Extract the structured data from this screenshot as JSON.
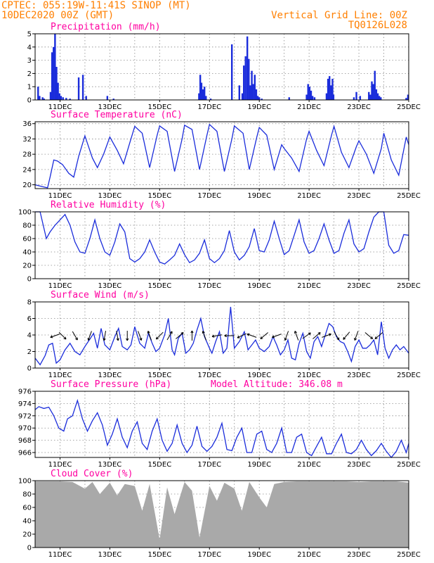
{
  "header": {
    "line1": "CPTEC:   055:19W-11:41S  SINOP (MT)",
    "line2": "10DEC2020 00Z (GMT)",
    "right1": "Vertical Grid Line: 00Z",
    "right2": "TQ0126L028"
  },
  "colors": {
    "header": "#ff7f00",
    "title": "#ff00a0",
    "line": "#1a2cdb",
    "cloud": "#a9a9a9",
    "frame": "#000000",
    "grid": "#8a8a8a"
  },
  "x_axis": {
    "start": "10DEC2020 00Z",
    "days": 15,
    "tick_labels": [
      "11DEC",
      "13DEC",
      "15DEC",
      "17DEC",
      "19DEC",
      "21DEC",
      "23DEC",
      "25DEC"
    ],
    "tick_day_offsets": [
      1,
      3,
      5,
      7,
      9,
      11,
      13,
      15
    ]
  },
  "chart_data": [
    {
      "type": "bar",
      "title": "Precipitation (mm/h)",
      "ylim": [
        0,
        5
      ],
      "yticks": [
        0,
        1,
        2,
        3,
        4,
        5
      ],
      "x": [
        0.12,
        0.18,
        0.3,
        0.36,
        0.62,
        0.68,
        0.74,
        0.8,
        0.86,
        0.92,
        0.98,
        1.04,
        1.12,
        1.25,
        1.4,
        1.75,
        1.92,
        2.05,
        2.9,
        3.15,
        6.58,
        6.63,
        6.68,
        6.74,
        6.8,
        6.86,
        7.05,
        7.9,
        8.2,
        8.32,
        8.38,
        8.45,
        8.52,
        8.58,
        8.64,
        8.7,
        8.76,
        8.82,
        8.88,
        8.94,
        9.0,
        9.1,
        10.2,
        10.9,
        10.96,
        11.02,
        11.08,
        11.14,
        11.22,
        11.7,
        11.76,
        11.82,
        11.88,
        11.94,
        11.98,
        12.8,
        12.9,
        13.05,
        13.4,
        13.46,
        13.52,
        13.58,
        13.64,
        13.7,
        13.76,
        13.82,
        13.88,
        14.9,
        14.97
      ],
      "values": [
        1.0,
        0.3,
        0.2,
        0.1,
        0.6,
        3.6,
        4.0,
        5.0,
        2.5,
        1.3,
        0.5,
        0.3,
        0.2,
        0.15,
        0.1,
        1.7,
        1.9,
        0.3,
        0.3,
        0.1,
        0.5,
        1.9,
        1.3,
        0.8,
        1.0,
        0.3,
        0.1,
        4.2,
        1.1,
        0.5,
        2.6,
        3.3,
        4.8,
        3.1,
        1.1,
        2.2,
        1.2,
        1.9,
        0.8,
        0.3,
        0.2,
        0.1,
        0.2,
        0.4,
        1.2,
        1.0,
        0.7,
        0.3,
        0.2,
        0.5,
        1.6,
        1.8,
        1.1,
        1.6,
        0.4,
        0.2,
        0.6,
        0.3,
        0.6,
        0.4,
        1.4,
        1.2,
        2.2,
        0.8,
        0.5,
        0.3,
        0.2,
        0.15,
        0.4
      ]
    },
    {
      "type": "line",
      "title": "Surface Temperature (nC)",
      "ylim": [
        19,
        36.5
      ],
      "yticks": [
        20,
        24,
        28,
        32,
        36
      ],
      "x": [
        0,
        0.3,
        0.5,
        0.6,
        0.75,
        0.9,
        1.1,
        1.35,
        1.55,
        1.75,
        2.0,
        2.3,
        2.5,
        2.75,
        3.0,
        3.3,
        3.55,
        3.8,
        4.0,
        4.3,
        4.6,
        4.9,
        5.0,
        5.3,
        5.6,
        5.9,
        6.0,
        6.3,
        6.6,
        6.9,
        7.0,
        7.3,
        7.6,
        7.9,
        8.0,
        8.35,
        8.6,
        8.9,
        9.0,
        9.3,
        9.6,
        9.9,
        10.0,
        10.3,
        10.6,
        10.9,
        11.0,
        11.3,
        11.6,
        11.9,
        12.0,
        12.3,
        12.6,
        12.9,
        13.0,
        13.3,
        13.6,
        13.9,
        14.0,
        14.3,
        14.6,
        14.9,
        15.0
      ],
      "values": [
        20.0,
        19.5,
        19.2,
        22.0,
        26.5,
        26.2,
        25.3,
        23.0,
        22.0,
        27.5,
        32.8,
        27.0,
        24.5,
        28.0,
        32.5,
        29.0,
        25.5,
        31.0,
        35.3,
        33.5,
        24.5,
        33.0,
        35.4,
        34.0,
        23.5,
        32.0,
        35.6,
        34.5,
        24.0,
        33.0,
        35.8,
        34.0,
        23.5,
        32.0,
        35.4,
        33.5,
        24.0,
        32.5,
        35.0,
        33.0,
        24.0,
        30.5,
        29.5,
        27.0,
        23.5,
        32.0,
        34.0,
        29.0,
        25.0,
        33.0,
        35.3,
        28.5,
        24.5,
        30.0,
        31.5,
        28.0,
        23.0,
        29.5,
        33.5,
        26.5,
        22.5,
        32.5,
        30.5
      ]
    },
    {
      "type": "line",
      "title": "Relative Humidity (%)",
      "ylim": [
        0,
        100
      ],
      "yticks": [
        0,
        20,
        40,
        60,
        80,
        100
      ],
      "x": [
        0,
        0.2,
        0.45,
        0.6,
        0.8,
        1.0,
        1.2,
        1.4,
        1.6,
        1.8,
        2.0,
        2.2,
        2.4,
        2.6,
        2.8,
        3.0,
        3.2,
        3.4,
        3.6,
        3.8,
        4.0,
        4.2,
        4.4,
        4.6,
        4.8,
        5.0,
        5.2,
        5.4,
        5.6,
        5.8,
        6.0,
        6.2,
        6.4,
        6.6,
        6.8,
        7.0,
        7.2,
        7.4,
        7.6,
        7.8,
        8.0,
        8.2,
        8.4,
        8.6,
        8.8,
        9.0,
        9.2,
        9.4,
        9.6,
        9.8,
        10.0,
        10.2,
        10.4,
        10.6,
        10.8,
        11.0,
        11.2,
        11.4,
        11.6,
        11.8,
        12.0,
        12.2,
        12.4,
        12.6,
        12.8,
        13.0,
        13.2,
        13.4,
        13.6,
        13.8,
        14.0,
        14.2,
        14.4,
        14.6,
        14.8,
        15.0
      ],
      "values": [
        100,
        100,
        60,
        70,
        80,
        88,
        96,
        80,
        55,
        40,
        38,
        60,
        88,
        60,
        40,
        35,
        55,
        82,
        70,
        30,
        25,
        30,
        40,
        58,
        40,
        25,
        22,
        28,
        35,
        52,
        36,
        24,
        28,
        38,
        58,
        30,
        24,
        30,
        42,
        72,
        40,
        28,
        35,
        48,
        75,
        42,
        40,
        58,
        86,
        60,
        36,
        42,
        65,
        88,
        55,
        38,
        42,
        60,
        82,
        58,
        38,
        42,
        68,
        88,
        52,
        40,
        45,
        70,
        92,
        100,
        100,
        50,
        38,
        42,
        66,
        65
      ]
    },
    {
      "type": "line",
      "title": "Surface Wind (m/s)",
      "ylim": [
        0,
        8
      ],
      "yticks": [
        0,
        2,
        4,
        6,
        8
      ],
      "x": [
        0,
        0.2,
        0.4,
        0.55,
        0.7,
        0.85,
        1.0,
        1.2,
        1.4,
        1.6,
        1.8,
        2.0,
        2.2,
        2.35,
        2.5,
        2.65,
        2.8,
        3.0,
        3.2,
        3.35,
        3.5,
        3.7,
        3.85,
        4.0,
        4.2,
        4.4,
        4.55,
        4.7,
        4.85,
        5.0,
        5.2,
        5.35,
        5.5,
        5.6,
        5.75,
        5.9,
        6.05,
        6.2,
        6.35,
        6.5,
        6.65,
        6.8,
        7.0,
        7.1,
        7.25,
        7.4,
        7.55,
        7.7,
        7.85,
        8.0,
        8.2,
        8.4,
        8.55,
        8.7,
        8.85,
        9.0,
        9.2,
        9.4,
        9.55,
        9.7,
        9.85,
        10.0,
        10.15,
        10.3,
        10.45,
        10.6,
        10.75,
        10.9,
        11.05,
        11.2,
        11.35,
        11.5,
        11.65,
        11.8,
        11.95,
        12.1,
        12.25,
        12.4,
        12.55,
        12.7,
        12.85,
        13.0,
        13.15,
        13.3,
        13.45,
        13.6,
        13.75,
        13.9,
        14.05,
        14.2,
        14.35,
        14.5,
        14.65,
        14.8,
        15.0
      ],
      "values": [
        1.2,
        0.4,
        1.5,
        2.8,
        3.0,
        0.6,
        1.0,
        2.2,
        3.0,
        2.0,
        1.6,
        2.6,
        3.5,
        4.2,
        2.4,
        4.8,
        2.8,
        2.2,
        3.8,
        4.8,
        2.6,
        2.2,
        2.8,
        5.0,
        3.0,
        2.4,
        4.2,
        3.0,
        2.0,
        2.4,
        4.0,
        6.0,
        2.2,
        1.6,
        3.6,
        4.2,
        1.8,
        2.2,
        3.0,
        4.6,
        6.0,
        3.8,
        2.4,
        1.8,
        3.2,
        4.4,
        1.8,
        2.4,
        7.4,
        2.4,
        3.2,
        4.4,
        2.2,
        2.8,
        3.4,
        2.4,
        2.0,
        2.6,
        3.8,
        2.8,
        1.6,
        2.2,
        3.4,
        1.2,
        1.0,
        3.0,
        4.2,
        2.0,
        1.2,
        3.2,
        3.8,
        2.6,
        4.0,
        5.4,
        5.0,
        3.8,
        3.2,
        3.0,
        2.0,
        0.8,
        2.6,
        3.4,
        2.4,
        2.4,
        2.8,
        3.4,
        1.6,
        5.6,
        2.4,
        1.2,
        2.2,
        2.8,
        2.2,
        2.6,
        1.8
      ],
      "arrows": {
        "x": [
          0.8,
          1.1,
          1.6,
          2.2,
          2.8,
          3.3,
          3.7,
          4.2,
          4.6,
          5.0,
          5.4,
          5.8,
          6.3,
          6.8,
          7.3,
          7.8,
          8.3,
          8.7,
          9.2,
          9.7,
          10.1,
          10.5,
          10.9,
          11.3,
          11.7,
          12.1,
          12.5,
          12.9,
          13.4,
          13.8
        ],
        "dir_deg": [
          200,
          315,
          300,
          250,
          260,
          280,
          270,
          290,
          110,
          225,
          60,
          40,
          90,
          110,
          190,
          180,
          205,
          160,
          220,
          200,
          250,
          110,
          35,
          40,
          20,
          300,
          230,
          250,
          320,
          220
        ],
        "label": "wind vectors"
      }
    },
    {
      "type": "line",
      "title": "Surface Pressure (hPa)",
      "ylim": [
        965.2,
        976
      ],
      "yticks": [
        966,
        968,
        970,
        972,
        974,
        976
      ],
      "x": [
        0,
        0.15,
        0.35,
        0.55,
        0.75,
        0.95,
        1.15,
        1.3,
        1.5,
        1.7,
        1.9,
        2.1,
        2.3,
        2.5,
        2.7,
        2.9,
        3.1,
        3.3,
        3.5,
        3.7,
        3.9,
        4.1,
        4.3,
        4.5,
        4.7,
        4.9,
        5.1,
        5.3,
        5.5,
        5.7,
        5.9,
        6.1,
        6.3,
        6.5,
        6.7,
        6.9,
        7.1,
        7.3,
        7.5,
        7.7,
        7.9,
        8.1,
        8.3,
        8.5,
        8.7,
        8.9,
        9.1,
        9.3,
        9.5,
        9.7,
        9.9,
        10.1,
        10.3,
        10.5,
        10.7,
        10.9,
        11.1,
        11.3,
        11.5,
        11.7,
        11.9,
        12.1,
        12.3,
        12.5,
        12.7,
        12.9,
        13.1,
        13.3,
        13.5,
        13.7,
        13.9,
        14.1,
        14.3,
        14.5,
        14.7,
        14.9,
        15.0
      ],
      "values": [
        973.0,
        973.5,
        973.2,
        973.4,
        972.0,
        970.0,
        969.5,
        971.5,
        972.0,
        974.5,
        971.5,
        969.5,
        971.2,
        972.5,
        970.5,
        967.2,
        969.0,
        971.5,
        968.5,
        966.8,
        969.5,
        971.0,
        967.5,
        966.5,
        969.5,
        971.5,
        968.0,
        966.2,
        967.5,
        970.5,
        967.5,
        966.0,
        967.2,
        970.3,
        967.0,
        966.2,
        967.0,
        968.5,
        970.8,
        966.5,
        966.3,
        968.5,
        970.0,
        966.0,
        966.0,
        969.0,
        969.5,
        966.5,
        966.0,
        967.5,
        970.0,
        966.0,
        966.0,
        968.5,
        969.0,
        966.0,
        965.5,
        967.0,
        968.5,
        965.8,
        965.8,
        967.5,
        969.0,
        966.0,
        965.8,
        966.5,
        968.0,
        966.5,
        965.5,
        966.3,
        967.5,
        966.2,
        965.2,
        966.2,
        968.0,
        966.0,
        967.5
      ],
      "annotation": "Model Altitude: 346.08 m"
    },
    {
      "type": "area",
      "title": "Cloud Cover (%)",
      "ylim": [
        0,
        100
      ],
      "yticks": [
        0,
        20,
        40,
        60,
        80,
        100
      ],
      "x": [
        0,
        0.5,
        1.0,
        1.5,
        2.0,
        2.3,
        2.6,
        3.0,
        3.3,
        3.6,
        4.0,
        4.3,
        4.6,
        5.0,
        5.3,
        5.6,
        6.0,
        6.3,
        6.6,
        7.0,
        7.3,
        7.6,
        8.0,
        8.3,
        8.6,
        9.0,
        9.3,
        9.6,
        10.0,
        10.5,
        11.0,
        11.5,
        12.0,
        12.5,
        13.0,
        13.5,
        14.0,
        14.5,
        15.0
      ],
      "values": [
        99,
        99,
        99,
        98,
        88,
        98,
        80,
        97,
        78,
        95,
        92,
        55,
        95,
        12,
        90,
        50,
        98,
        85,
        15,
        92,
        70,
        97,
        88,
        55,
        98,
        75,
        60,
        95,
        98,
        99,
        99,
        99,
        99,
        99,
        98,
        99,
        99,
        99,
        97
      ]
    }
  ]
}
